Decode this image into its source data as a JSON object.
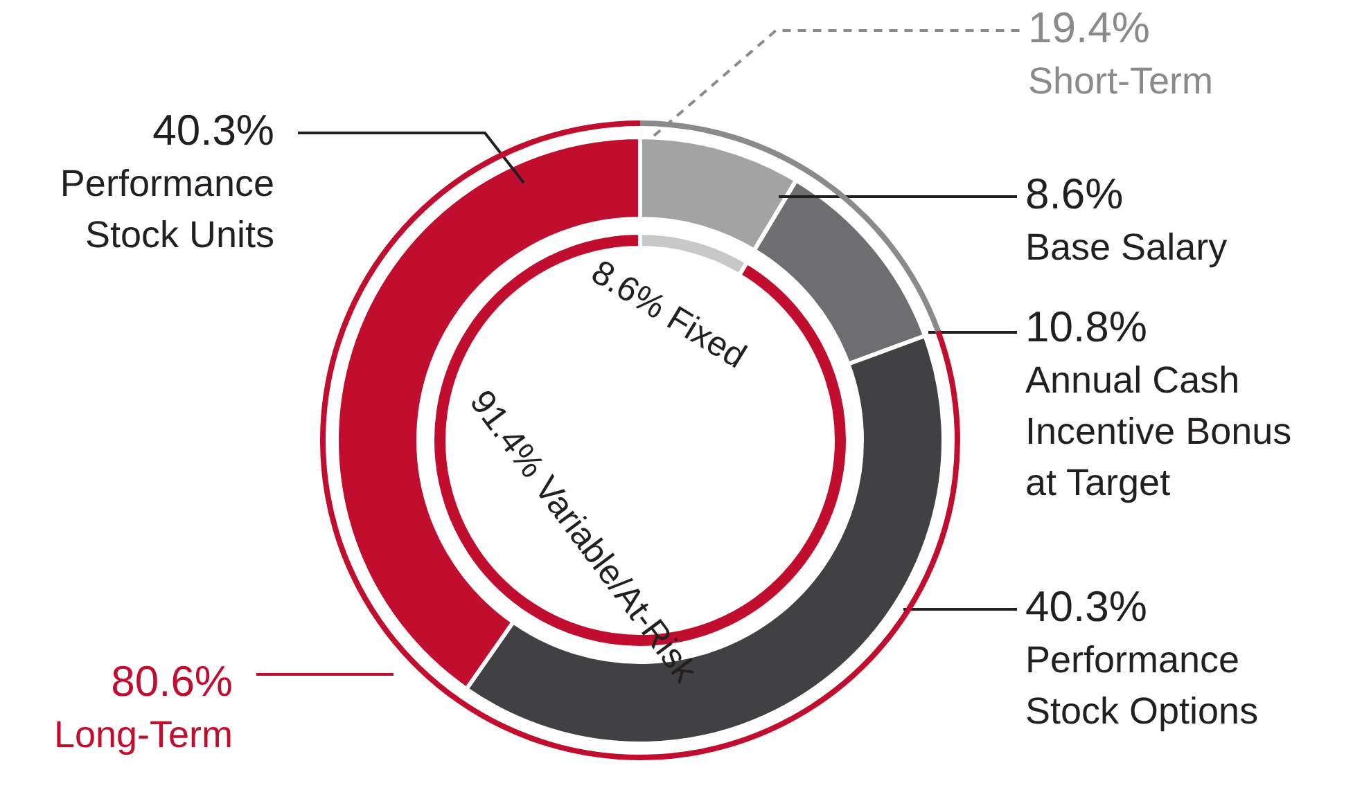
{
  "chart_data": [
    {
      "type": "donut",
      "categories": [
        "Base Salary",
        "Annual Cash Incentive Bonus at Target",
        "Performance Stock Options",
        "Performance Stock Units"
      ],
      "values": [
        8.6,
        10.8,
        40.3,
        40.3
      ],
      "value_labels": [
        "8.6%",
        "10.8%",
        "40.3%",
        "40.3%"
      ],
      "colors": [
        "#a3a3a3",
        "#6e6e70",
        "#414143",
        "#c20e2e"
      ],
      "legend": false
    },
    {
      "type": "donut",
      "categories": [
        "Short-Term",
        "Long-Term"
      ],
      "values": [
        19.4,
        80.6
      ],
      "value_labels": [
        "19.4%",
        "80.6%"
      ],
      "colors": [
        "#8a8a8a",
        "#c20e2e"
      ],
      "legend": false
    },
    {
      "type": "donut",
      "categories": [
        "Fixed",
        "Variable/At-Risk"
      ],
      "values": [
        8.6,
        91.4
      ],
      "value_labels": [
        "8.6%",
        "91.4%"
      ],
      "colors": [
        "#c8c8c8",
        "#c20e2e"
      ],
      "legend": false
    }
  ]
}
